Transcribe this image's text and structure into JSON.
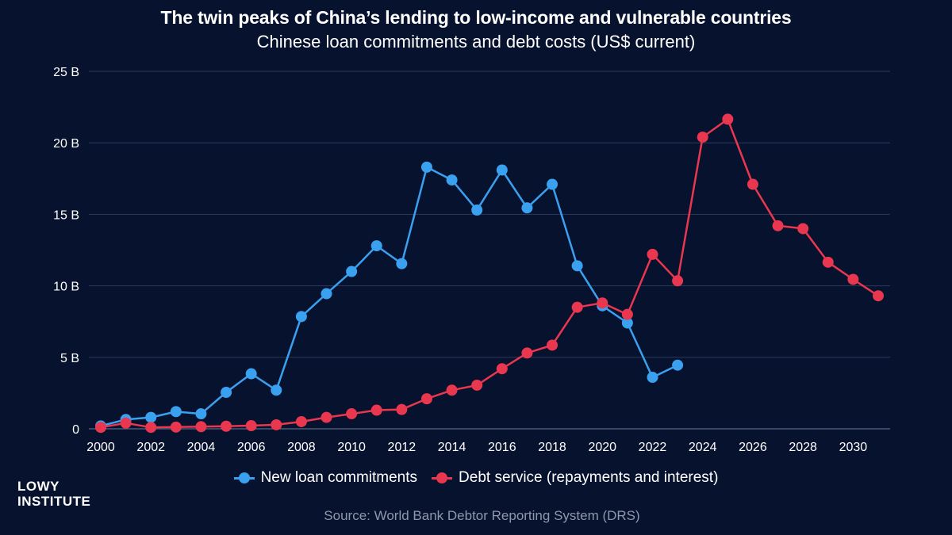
{
  "chart_data": {
    "type": "line",
    "title": "The twin peaks of China’s lending to low-income and vulnerable countries",
    "subtitle": "Chinese loan commitments and debt costs (US$ current)",
    "xlabel": "",
    "ylabel": "",
    "ylim": [
      0,
      25
    ],
    "xlim": [
      2000,
      2031
    ],
    "x_ticks": [
      "2000",
      "2002",
      "2004",
      "2006",
      "2008",
      "2010",
      "2012",
      "2014",
      "2016",
      "2018",
      "2020",
      "2022",
      "2024",
      "2026",
      "2028",
      "2030"
    ],
    "y_ticks": [
      "0",
      "5 B",
      "10 B",
      "15 B",
      "20 B",
      "25 B"
    ],
    "y_tick_values": [
      0,
      5,
      10,
      15,
      20,
      25
    ],
    "grid": true,
    "legend_position": "bottom",
    "series": [
      {
        "name": "New loan commitments",
        "color": "#3aa0f0",
        "x": [
          2000,
          2001,
          2002,
          2003,
          2004,
          2005,
          2006,
          2007,
          2008,
          2009,
          2010,
          2011,
          2012,
          2013,
          2014,
          2015,
          2016,
          2017,
          2018,
          2019,
          2020,
          2021,
          2022,
          2023
        ],
        "values": [
          0.2,
          0.65,
          0.8,
          1.2,
          1.05,
          2.55,
          3.85,
          2.7,
          7.85,
          9.45,
          11.0,
          12.8,
          11.55,
          18.3,
          17.4,
          15.3,
          18.1,
          15.45,
          17.1,
          11.4,
          8.6,
          7.4,
          3.6,
          4.45
        ]
      },
      {
        "name": "Debt service (repayments and interest)",
        "color": "#e8374e",
        "x": [
          2000,
          2001,
          2002,
          2003,
          2004,
          2005,
          2006,
          2007,
          2008,
          2009,
          2010,
          2011,
          2012,
          2013,
          2014,
          2015,
          2016,
          2017,
          2018,
          2019,
          2020,
          2021,
          2022,
          2023,
          2024,
          2025,
          2026,
          2027,
          2028,
          2029,
          2030,
          2031
        ],
        "values": [
          0.1,
          0.4,
          0.1,
          0.12,
          0.15,
          0.18,
          0.22,
          0.28,
          0.5,
          0.8,
          1.05,
          1.3,
          1.35,
          2.1,
          2.7,
          3.05,
          4.2,
          5.3,
          5.85,
          8.5,
          8.8,
          8.0,
          12.2,
          10.35,
          20.4,
          21.65,
          17.1,
          14.2,
          14.0,
          11.65,
          10.45,
          9.3
        ]
      }
    ]
  },
  "logo": {
    "line1": "LOWY",
    "line2": "INSTITUTE"
  },
  "source": "Source: World Bank Debtor Reporting System (DRS)",
  "colors": {
    "background": "#07122e",
    "grid": "#2c3a5a",
    "text": "#ffffff",
    "source_text": "#8f97aa"
  }
}
